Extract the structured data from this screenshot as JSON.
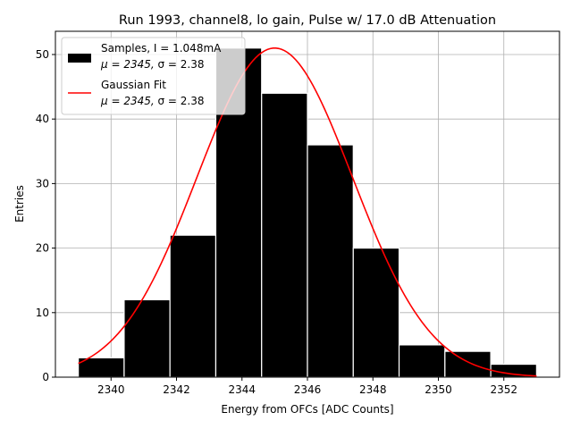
{
  "chart_data": {
    "type": "bar",
    "title": "Run 1993, channel8, lo gain, Pulse w/ 17.0 dB Attenuation",
    "xlabel": "Energy from OFCs [ADC Counts]",
    "ylabel": "Entries",
    "xlim": [
      2338.3,
      2353.7
    ],
    "ylim": [
      0,
      53.6
    ],
    "grid": true,
    "xticks": [
      2340,
      2342,
      2344,
      2346,
      2348,
      2350,
      2352
    ],
    "yticks": [
      0,
      10,
      20,
      30,
      40,
      50
    ],
    "bins": [
      {
        "left": 2339.0,
        "right": 2340.4,
        "count": 3
      },
      {
        "left": 2340.4,
        "right": 2341.8,
        "count": 12
      },
      {
        "left": 2341.8,
        "right": 2343.2,
        "count": 22
      },
      {
        "left": 2343.2,
        "right": 2344.6,
        "count": 51
      },
      {
        "left": 2344.6,
        "right": 2346.0,
        "count": 44
      },
      {
        "left": 2346.0,
        "right": 2347.4,
        "count": 36
      },
      {
        "left": 2347.4,
        "right": 2348.8,
        "count": 20
      },
      {
        "left": 2348.8,
        "right": 2350.2,
        "count": 5
      },
      {
        "left": 2350.2,
        "right": 2351.6,
        "count": 4
      },
      {
        "left": 2351.6,
        "right": 2353.0,
        "count": 2
      }
    ],
    "series": [
      {
        "name": "Samples",
        "kind": "histogram",
        "color": "#000000"
      },
      {
        "name": "Gaussian Fit",
        "kind": "line",
        "color": "#ff0000",
        "mu": 2345,
        "sigma": 2.38,
        "amplitude": 51,
        "x_range": [
          2339,
          2353
        ]
      }
    ],
    "legend": {
      "position": "top-left",
      "entries": [
        {
          "line1": "Samples, I = 1.048mA",
          "line2_a": "μ = 2345, ",
          "line2_b": "σ = 2.38",
          "marker": "box",
          "color": "#000000"
        },
        {
          "line1": "Gaussian Fit",
          "line2_a": "μ = 2345, ",
          "line2_b": "σ = 2.38",
          "marker": "line",
          "color": "#ff0000"
        }
      ]
    }
  }
}
